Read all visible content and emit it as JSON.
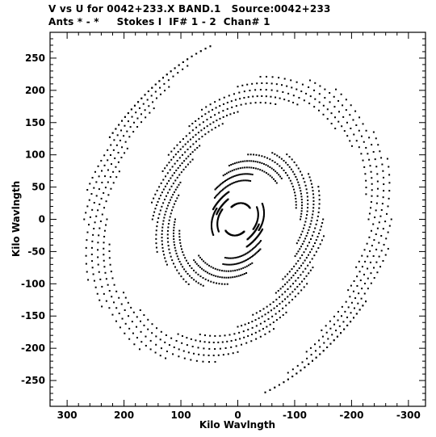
{
  "chart_data": {
    "type": "scatter",
    "title": "V vs U for 0042+233.X BAND.1   Source:0042+233",
    "subtitle": "Ants * - *     Stokes I  IF# 1 - 2  Chan# 1",
    "xlabel": "Kilo Wavlngth",
    "ylabel": "Kilo Wavlngth",
    "xlim": [
      330,
      -330
    ],
    "ylim": [
      -290,
      290
    ],
    "xticks": [
      300,
      200,
      100,
      0,
      -100,
      -200,
      -300
    ],
    "yticks": [
      250,
      200,
      150,
      100,
      50,
      0,
      -50,
      -100,
      -150,
      -200,
      -250
    ],
    "grid": false,
    "legend": "none",
    "series": [
      {
        "marker_color": "#000000",
        "points_per_track": 28,
        "tracks": [
          {
            "radius": 40,
            "start_deg": 12,
            "end_deg": 62
          },
          {
            "radius": 60,
            "start_deg": 40,
            "end_deg": 110
          },
          {
            "radius": 80,
            "start_deg": 70,
            "end_deg": 140
          },
          {
            "radius": 100,
            "start_deg": 100,
            "end_deg": 170
          },
          {
            "radius": 120,
            "start_deg": 130,
            "end_deg": 200
          },
          {
            "radius": 140,
            "start_deg": 160,
            "end_deg": 230
          },
          {
            "radius": 160,
            "start_deg": 190,
            "end_deg": 260
          },
          {
            "radius": 180,
            "start_deg": 220,
            "end_deg": 290
          },
          {
            "radius": 200,
            "start_deg": 250,
            "end_deg": 320
          },
          {
            "radius": 220,
            "start_deg": 280,
            "end_deg": 350
          },
          {
            "radius": 240,
            "start_deg": 310,
            "end_deg": 380
          },
          {
            "radius": 260,
            "start_deg": 340,
            "end_deg": 410
          },
          {
            "radius": 280,
            "start_deg": 10,
            "end_deg": 70
          },
          {
            "radius": 50,
            "start_deg": 200,
            "end_deg": 250
          },
          {
            "radius": 70,
            "start_deg": 230,
            "end_deg": 290
          },
          {
            "radius": 90,
            "start_deg": 260,
            "end_deg": 320
          },
          {
            "radius": 110,
            "start_deg": 300,
            "end_deg": 360
          },
          {
            "radius": 130,
            "start_deg": 330,
            "end_deg": 390
          },
          {
            "radius": 150,
            "start_deg": 0,
            "end_deg": 60
          },
          {
            "radius": 170,
            "start_deg": 30,
            "end_deg": 90
          },
          {
            "radius": 190,
            "start_deg": 60,
            "end_deg": 120
          },
          {
            "radius": 210,
            "start_deg": 90,
            "end_deg": 150
          },
          {
            "radius": 230,
            "start_deg": 120,
            "end_deg": 180
          },
          {
            "radius": 250,
            "start_deg": 150,
            "end_deg": 210
          },
          {
            "radius": 270,
            "start_deg": 180,
            "end_deg": 240
          },
          {
            "radius": 290,
            "start_deg": 210,
            "end_deg": 260
          },
          {
            "radius": 290,
            "start_deg": 30,
            "end_deg": 80
          },
          {
            "radius": 35,
            "start_deg": 150,
            "end_deg": 210
          },
          {
            "radius": 45,
            "start_deg": 330,
            "end_deg": 385
          },
          {
            "radius": 25,
            "start_deg": 60,
            "end_deg": 140
          },
          {
            "radius": 25,
            "start_deg": 240,
            "end_deg": 320
          }
        ]
      }
    ]
  }
}
